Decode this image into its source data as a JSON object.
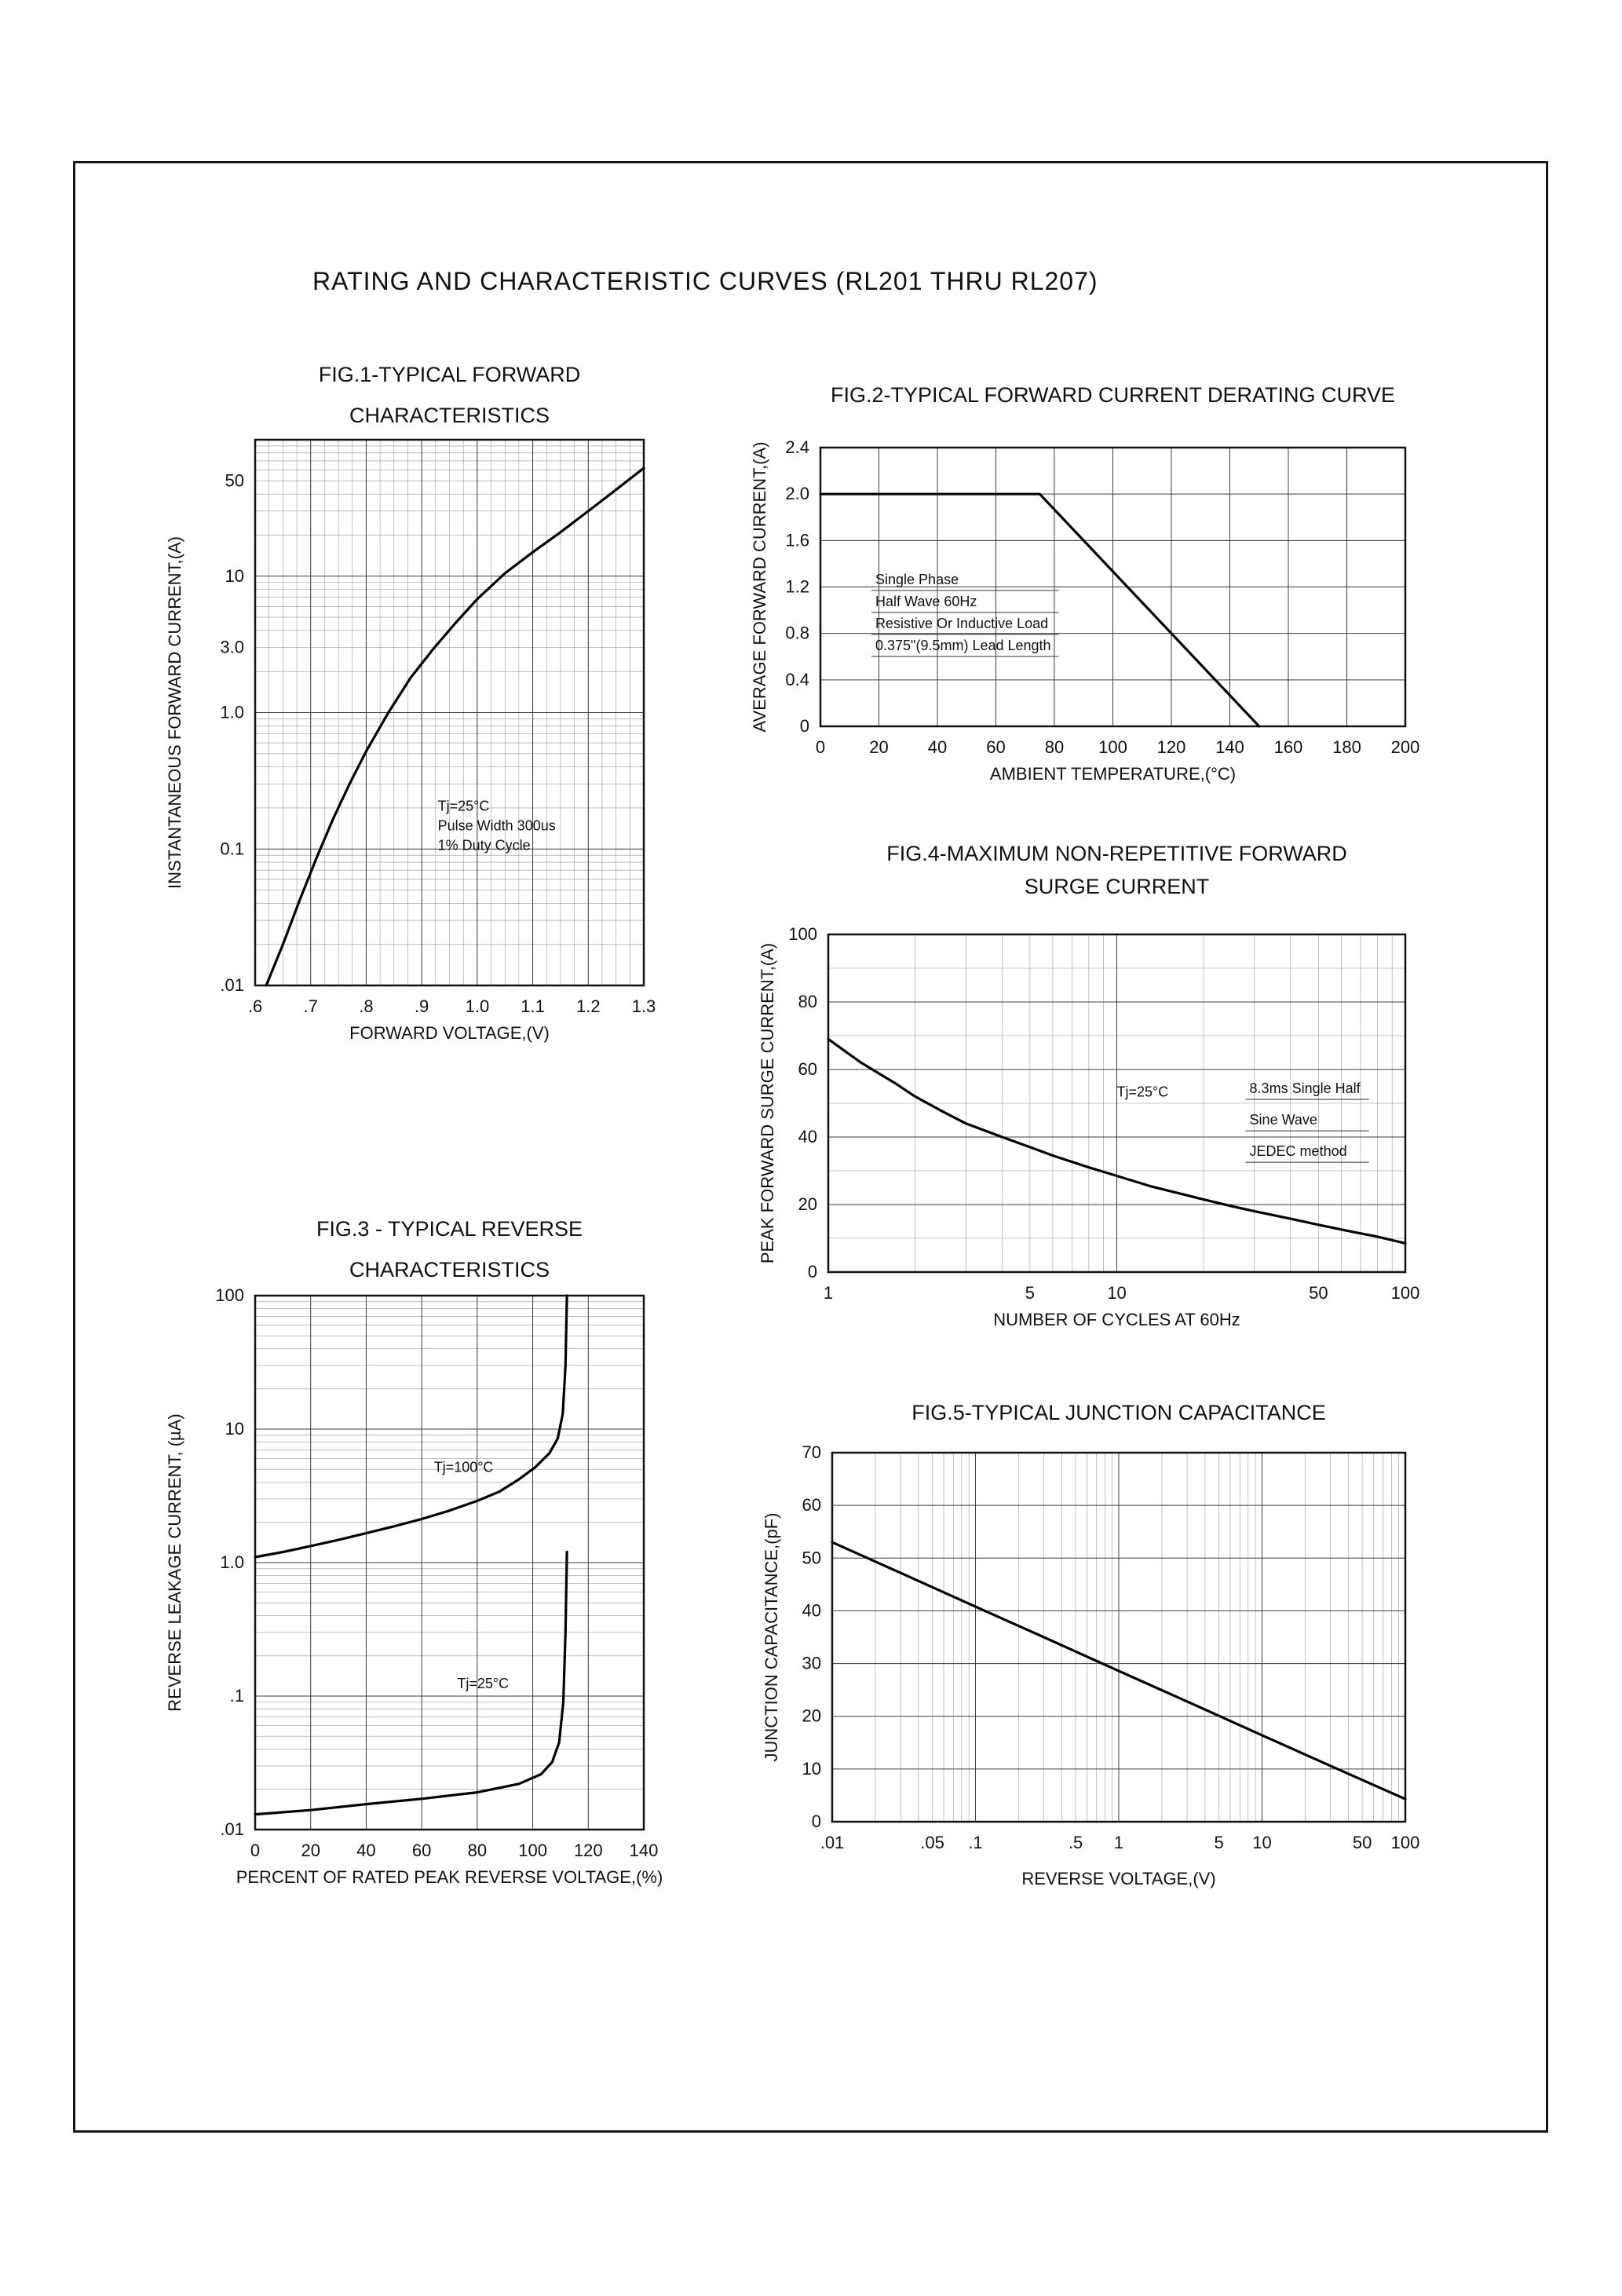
{
  "page": {
    "title": "RATING AND CHARACTERISTIC CURVES (RL201 THRU RL207)"
  },
  "chart_data": [
    {
      "id": "fig1",
      "type": "line",
      "title": "FIG.1-TYPICAL FORWARD",
      "subtitle": "CHARACTERISTICS",
      "xlabel": "FORWARD VOLTAGE,(V)",
      "ylabel": "INSTANTANEOUS FORWARD CURRENT,(A)",
      "x": {
        "scale": "linear",
        "min": 0.6,
        "max": 1.3,
        "tick_values": [
          0.6,
          0.7,
          0.8,
          0.9,
          1.0,
          1.1,
          1.2,
          1.3
        ],
        "tick_labels": [
          ".6",
          ".7",
          ".8",
          ".9",
          "1.0",
          "1.1",
          "1.2",
          "1.3"
        ],
        "minor_step": 0.025,
        "grid": true
      },
      "y": {
        "scale": "log",
        "min": 0.01,
        "max": 100,
        "tick_values": [
          50,
          10,
          3,
          1,
          0.1,
          0.01
        ],
        "tick_labels": [
          "50",
          "10",
          "3.0",
          "1.0",
          "0.1",
          ".01"
        ],
        "grid": true
      },
      "series": [
        {
          "name": "forward-characteristic",
          "points": [
            [
              0.62,
              0.01
            ],
            [
              0.65,
              0.02
            ],
            [
              0.68,
              0.042
            ],
            [
              0.71,
              0.085
            ],
            [
              0.74,
              0.165
            ],
            [
              0.77,
              0.3
            ],
            [
              0.8,
              0.52
            ],
            [
              0.84,
              1.0
            ],
            [
              0.88,
              1.8
            ],
            [
              0.92,
              2.9
            ],
            [
              0.96,
              4.5
            ],
            [
              1.0,
              6.8
            ],
            [
              1.05,
              10.5
            ],
            [
              1.1,
              15
            ],
            [
              1.15,
              21
            ],
            [
              1.2,
              30
            ],
            [
              1.25,
              43
            ],
            [
              1.3,
              62
            ]
          ]
        }
      ],
      "annotations": [
        {
          "lines": [
            "Tj=25°C",
            "Pulse Width 300us",
            "1% Duty Cycle"
          ],
          "fx": 0.47,
          "fy": 0.68,
          "lh": 25,
          "underline": false
        }
      ]
    },
    {
      "id": "fig2",
      "type": "line",
      "title": "FIG.2-TYPICAL FORWARD CURRENT DERATING CURVE",
      "xlabel": "AMBIENT TEMPERATURE,(°C)",
      "ylabel": "AVERAGE FORWARD CURRENT,(A)",
      "x": {
        "scale": "linear",
        "min": 0,
        "max": 200,
        "tick_values": [
          0,
          20,
          40,
          60,
          80,
          100,
          120,
          140,
          160,
          180,
          200
        ],
        "tick_labels": [
          "0",
          "20",
          "40",
          "60",
          "80",
          "100",
          "120",
          "140",
          "160",
          "180",
          "200"
        ],
        "grid": true
      },
      "y": {
        "scale": "linear",
        "min": 0,
        "max": 2.4,
        "tick_values": [
          0,
          0.4,
          0.8,
          1.2,
          1.6,
          2.0,
          2.4
        ],
        "tick_labels": [
          "0",
          "0.4",
          "0.8",
          "1.2",
          "1.6",
          "2.0",
          "2.4"
        ],
        "grid": true
      },
      "series": [
        {
          "name": "derating-curve",
          "points": [
            [
              0,
              2.0
            ],
            [
              75,
              2.0
            ],
            [
              150,
              0
            ]
          ]
        }
      ],
      "annotations": [
        {
          "lines": [
            "Single Phase",
            "Half Wave 60Hz",
            "Resistive Or Inductive Load",
            "0.375\"(9.5mm) Lead Length"
          ],
          "fx": 0.094,
          "fy": 0.49,
          "lh": 28,
          "underline": true
        }
      ]
    },
    {
      "id": "fig3",
      "type": "line",
      "title": "FIG.3 - TYPICAL REVERSE",
      "subtitle": "CHARACTERISTICS",
      "xlabel": "PERCENT OF RATED PEAK REVERSE VOLTAGE,(%)",
      "ylabel": "REVERSE LEAKAGE CURRENT, (µA)",
      "x": {
        "scale": "linear",
        "min": 0,
        "max": 140,
        "tick_values": [
          0,
          20,
          40,
          60,
          80,
          100,
          120,
          140
        ],
        "tick_labels": [
          "0",
          "20",
          "40",
          "60",
          "80",
          "100",
          "120",
          "140"
        ],
        "grid": true
      },
      "y": {
        "scale": "log",
        "min": 0.01,
        "max": 100,
        "tick_values": [
          100,
          10,
          1,
          0.1,
          0.01
        ],
        "tick_labels": [
          "100",
          "10",
          "1.0",
          ".1",
          ".01"
        ],
        "grid": true
      },
      "series": [
        {
          "name": "Tj=100C",
          "points": [
            [
              0,
              1.1
            ],
            [
              10,
              1.2
            ],
            [
              20,
              1.33
            ],
            [
              30,
              1.48
            ],
            [
              40,
              1.66
            ],
            [
              50,
              1.87
            ],
            [
              60,
              2.12
            ],
            [
              70,
              2.45
            ],
            [
              80,
              2.9
            ],
            [
              88,
              3.4
            ],
            [
              95,
              4.2
            ],
            [
              101,
              5.2
            ],
            [
              106,
              6.6
            ],
            [
              109,
              8.5
            ],
            [
              110.8,
              13
            ],
            [
              111.8,
              30
            ],
            [
              112.3,
              100
            ]
          ]
        },
        {
          "name": "Tj=25C",
          "points": [
            [
              0,
              0.013
            ],
            [
              20,
              0.014
            ],
            [
              40,
              0.0155
            ],
            [
              60,
              0.017
            ],
            [
              80,
              0.019
            ],
            [
              95,
              0.022
            ],
            [
              103,
              0.026
            ],
            [
              107,
              0.032
            ],
            [
              109.5,
              0.045
            ],
            [
              111,
              0.09
            ],
            [
              111.8,
              0.3
            ],
            [
              112.3,
              1.2
            ]
          ]
        }
      ],
      "annotations": [
        {
          "lines": [
            "Tj=100°C"
          ],
          "fx": 0.46,
          "fy": 0.33,
          "lh": 25,
          "underline": false
        },
        {
          "lines": [
            "Tj=25°C"
          ],
          "fx": 0.52,
          "fy": 0.735,
          "lh": 25,
          "underline": false
        }
      ]
    },
    {
      "id": "fig4",
      "type": "line",
      "title": "FIG.4-MAXIMUM NON-REPETITIVE FORWARD",
      "subtitle": "SURGE CURRENT",
      "xlabel": "NUMBER OF CYCLES AT 60Hz",
      "ylabel": "PEAK FORWARD SURGE CURRENT,(A)",
      "x": {
        "scale": "log",
        "min": 1,
        "max": 100,
        "tick_values": [
          1,
          5,
          10,
          50,
          100
        ],
        "tick_labels": [
          "1",
          "5",
          "10",
          "50",
          "100"
        ],
        "grid": true
      },
      "y": {
        "scale": "linear",
        "min": 0,
        "max": 100,
        "tick_values": [
          0,
          20,
          40,
          60,
          80,
          100
        ],
        "tick_labels": [
          "0",
          "20",
          "40",
          "60",
          "80",
          "100"
        ],
        "minor_step": 10,
        "grid": true
      },
      "series": [
        {
          "name": "surge-current",
          "points": [
            [
              1,
              69
            ],
            [
              1.3,
              62
            ],
            [
              1.7,
              56
            ],
            [
              2,
              52
            ],
            [
              2.5,
              47.5
            ],
            [
              3,
              44
            ],
            [
              4,
              40
            ],
            [
              5,
              37
            ],
            [
              6,
              34.5
            ],
            [
              8,
              31
            ],
            [
              10,
              28.5
            ],
            [
              13,
              25.5
            ],
            [
              17,
              23
            ],
            [
              20,
              21.5
            ],
            [
              25,
              19.5
            ],
            [
              30,
              18
            ],
            [
              40,
              15.8
            ],
            [
              50,
              14
            ],
            [
              65,
              12
            ],
            [
              80,
              10.5
            ],
            [
              100,
              8.5
            ]
          ]
        }
      ],
      "annotations": [
        {
          "lines": [
            "Tj=25°C"
          ],
          "fx": 0.5,
          "fy": 0.48,
          "lh": 25,
          "underline": false
        },
        {
          "lines": [
            "8.3ms Single Half",
            "Sine Wave",
            "JEDEC method"
          ],
          "fx": 0.73,
          "fy": 0.47,
          "lh": 40,
          "underline": true
        }
      ]
    },
    {
      "id": "fig5",
      "type": "line",
      "title": "FIG.5-TYPICAL JUNCTION CAPACITANCE",
      "xlabel": "REVERSE VOLTAGE,(V)",
      "ylabel": "JUNCTION CAPACITANCE,(pF)",
      "x": {
        "scale": "log",
        "min": 0.01,
        "max": 100,
        "tick_values": [
          0.01,
          0.05,
          0.1,
          0.5,
          1,
          5,
          10,
          50,
          100
        ],
        "tick_labels": [
          ".01",
          ".05",
          ".1",
          ".5",
          "1",
          "5",
          "10",
          "50",
          "100"
        ],
        "grid": true
      },
      "y": {
        "scale": "linear",
        "min": 0,
        "max": 70,
        "tick_values": [
          0,
          10,
          20,
          30,
          40,
          50,
          60,
          70
        ],
        "tick_labels": [
          "0",
          "10",
          "20",
          "30",
          "40",
          "50",
          "60",
          "70"
        ],
        "grid": true
      },
      "series": [
        {
          "name": "junction-capacitance",
          "points": [
            [
              0.01,
              53
            ],
            [
              0.03,
              47.2
            ],
            [
              0.1,
              40.8
            ],
            [
              0.3,
              35
            ],
            [
              1,
              28.6
            ],
            [
              3,
              22.8
            ],
            [
              10,
              16.4
            ],
            [
              30,
              10.6
            ],
            [
              100,
              4.3
            ]
          ]
        }
      ],
      "annotations": []
    }
  ]
}
